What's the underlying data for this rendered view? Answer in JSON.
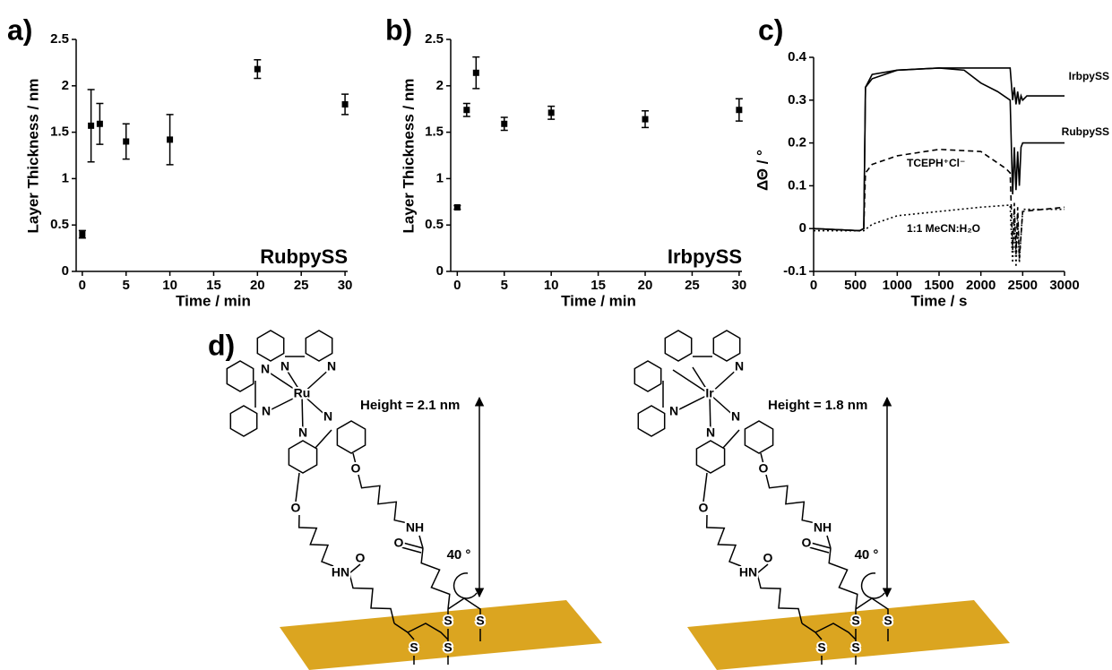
{
  "chart_data": [
    {
      "type": "scatter",
      "panel": "a)",
      "annotation": "RubpySS",
      "x_label": "Time / min",
      "y_label": "Layer Thickness / nm",
      "x": [
        0,
        1,
        2,
        5,
        10,
        20,
        30
      ],
      "values": [
        0.4,
        1.57,
        1.59,
        1.4,
        1.42,
        2.18,
        1.8
      ],
      "errors": [
        0.04,
        0.39,
        0.22,
        0.19,
        0.27,
        0.1,
        0.11
      ],
      "color": "#000000",
      "xlim": [
        -0.7,
        30.3
      ],
      "ylim": [
        0,
        2.5
      ],
      "xticks": [
        0,
        5,
        10,
        15,
        20,
        25,
        30
      ],
      "yticks": [
        0,
        0.5,
        1,
        1.5,
        2,
        2.5
      ]
    },
    {
      "type": "scatter",
      "panel": "b)",
      "annotation": "IrbpySS",
      "x_label": "Time / min",
      "y_label": "Layer Thickness / nm",
      "x": [
        0,
        1,
        2,
        5,
        10,
        20,
        30
      ],
      "values": [
        0.69,
        1.74,
        2.14,
        1.59,
        1.71,
        1.64,
        1.74
      ],
      "errors": [
        0.02,
        0.07,
        0.17,
        0.07,
        0.07,
        0.09,
        0.12
      ],
      "color": "#000000",
      "xlim": [
        -0.7,
        30.3
      ],
      "ylim": [
        0,
        2.5
      ],
      "xticks": [
        0,
        5,
        10,
        15,
        20,
        25,
        30
      ],
      "yticks": [
        0,
        0.5,
        1,
        1.5,
        2,
        2.5
      ]
    },
    {
      "type": "line",
      "panel": "c)",
      "x_label": "Time / s",
      "y_label": "ΔΘ / °",
      "xlim": [
        0,
        3000
      ],
      "ylim": [
        -0.1,
        0.4
      ],
      "xticks": [
        0,
        500,
        1000,
        1500,
        2000,
        2500,
        3000
      ],
      "yticks": [
        -0.1,
        0,
        0.1,
        0.2,
        0.3,
        0.4
      ],
      "series": [
        {
          "name": "IrbpySS",
          "color": "#000000",
          "dash": "solid",
          "x": [
            0,
            550,
            600,
            620,
            700,
            1000,
            1500,
            2000,
            2350,
            2380,
            2400,
            2420,
            2440,
            2460,
            2480,
            2500,
            2550,
            2600,
            3000
          ],
          "values": [
            0,
            -0.005,
            0,
            0.33,
            0.35,
            0.37,
            0.375,
            0.375,
            0.375,
            0.3,
            0.33,
            0.29,
            0.32,
            0.29,
            0.31,
            0.3,
            0.31,
            0.31,
            0.31
          ]
        },
        {
          "name": "RubpySS",
          "color": "#000000",
          "dash": "solid",
          "x": [
            0,
            550,
            600,
            620,
            700,
            1000,
            1500,
            1800,
            2000,
            2200,
            2350,
            2380,
            2400,
            2420,
            2440,
            2460,
            2480,
            2500,
            2550,
            3000
          ],
          "values": [
            0,
            -0.005,
            0,
            0.33,
            0.36,
            0.37,
            0.375,
            0.37,
            0.34,
            0.32,
            0.3,
            0.08,
            0.19,
            0.09,
            0.18,
            0.1,
            0.19,
            0.2,
            0.2,
            0.2
          ]
        },
        {
          "name": "TCEPH⁺Cl⁻",
          "color": "#000000",
          "dash": "dashed",
          "x": [
            0,
            550,
            600,
            620,
            700,
            1000,
            1500,
            2000,
            2300,
            2350,
            2380,
            2400,
            2420,
            2440,
            2460,
            2500,
            3000
          ],
          "values": [
            0,
            -0.005,
            0,
            0.13,
            0.15,
            0.17,
            0.185,
            0.18,
            0.14,
            0.13,
            -0.05,
            0.06,
            -0.06,
            0.05,
            -0.07,
            0.04,
            0.05
          ]
        },
        {
          "name": "1:1 MeCN:H₂O",
          "color": "#000000",
          "dash": "dotted",
          "x": [
            0,
            600,
            700,
            1000,
            1500,
            2000,
            2350,
            2380,
            2400,
            2420,
            2440,
            2460,
            2500,
            3000
          ],
          "values": [
            -0.005,
            -0.005,
            0.01,
            0.03,
            0.04,
            0.05,
            0.055,
            -0.08,
            0.03,
            -0.09,
            0.02,
            -0.08,
            0.045,
            0.045
          ]
        }
      ]
    }
  ],
  "panel_d": {
    "label": "d)",
    "structures": [
      {
        "metal": "Ru",
        "height": "Height = 2.1 nm",
        "angle": "40 °",
        "atoms": [
          "N",
          "N",
          "N",
          "N",
          "N",
          "N",
          "O",
          "O",
          "NH",
          "HN",
          "O",
          "O",
          "S",
          "S",
          "S",
          "S"
        ]
      },
      {
        "metal": "Ir",
        "height": "Height = 1.8 nm",
        "angle": "40 °",
        "atoms": [
          "N",
          "N",
          "N",
          "N",
          "O",
          "O",
          "NH",
          "HN",
          "O",
          "O",
          "S",
          "S",
          "S",
          "S"
        ]
      }
    ]
  }
}
